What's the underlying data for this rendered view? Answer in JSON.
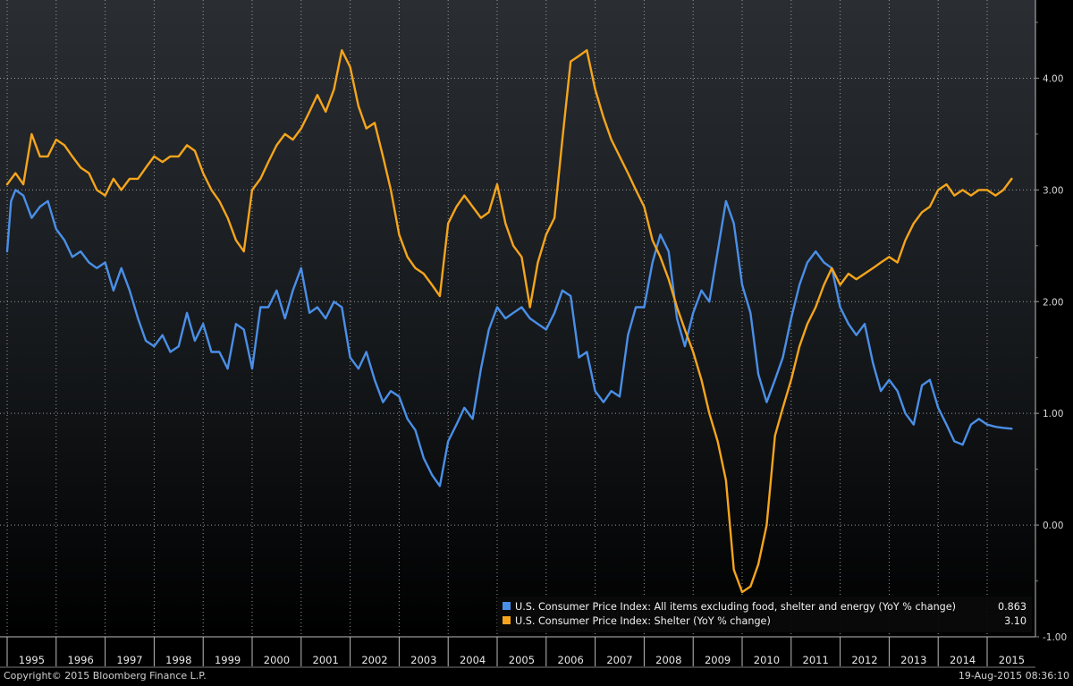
{
  "chart_data": {
    "type": "line",
    "title": "",
    "xlabel": "",
    "ylabel": "",
    "ylim": [
      -1.0,
      4.7
    ],
    "xlim": [
      1995.0,
      2015.62
    ],
    "y_ticks": [
      "-1.00",
      "0.00",
      "1.00",
      "2.00",
      "3.00",
      "4.00"
    ],
    "y_tick_values": [
      -1,
      0,
      1,
      2,
      3,
      4
    ],
    "year_labels": [
      "1995",
      "1996",
      "1997",
      "1998",
      "1999",
      "2000",
      "2001",
      "2002",
      "2003",
      "2004",
      "2005",
      "2006",
      "2007",
      "2008",
      "2009",
      "2010",
      "2011",
      "2012",
      "2013",
      "2014",
      "2015"
    ],
    "grid": true,
    "legend_position": "bottom-right",
    "series": [
      {
        "name": "U.S. Consumer Price Index: All items excluding food, shelter and energy (YoY % change)",
        "last_value": "0.863",
        "color": "#4a8fe7",
        "points": [
          [
            1995.0,
            2.45
          ],
          [
            1995.08,
            2.9
          ],
          [
            1995.17,
            3.0
          ],
          [
            1995.33,
            2.95
          ],
          [
            1995.5,
            2.75
          ],
          [
            1995.67,
            2.85
          ],
          [
            1995.83,
            2.9
          ],
          [
            1996.0,
            2.65
          ],
          [
            1996.17,
            2.55
          ],
          [
            1996.33,
            2.4
          ],
          [
            1996.5,
            2.45
          ],
          [
            1996.67,
            2.35
          ],
          [
            1996.83,
            2.3
          ],
          [
            1997.0,
            2.35
          ],
          [
            1997.17,
            2.1
          ],
          [
            1997.33,
            2.3
          ],
          [
            1997.5,
            2.1
          ],
          [
            1997.67,
            1.85
          ],
          [
            1997.83,
            1.65
          ],
          [
            1998.0,
            1.6
          ],
          [
            1998.17,
            1.7
          ],
          [
            1998.33,
            1.55
          ],
          [
            1998.5,
            1.6
          ],
          [
            1998.67,
            1.9
          ],
          [
            1998.83,
            1.65
          ],
          [
            1999.0,
            1.8
          ],
          [
            1999.17,
            1.55
          ],
          [
            1999.33,
            1.55
          ],
          [
            1999.5,
            1.4
          ],
          [
            1999.67,
            1.8
          ],
          [
            1999.83,
            1.75
          ],
          [
            2000.0,
            1.4
          ],
          [
            2000.17,
            1.95
          ],
          [
            2000.33,
            1.95
          ],
          [
            2000.5,
            2.1
          ],
          [
            2000.67,
            1.85
          ],
          [
            2000.83,
            2.1
          ],
          [
            2001.0,
            2.3
          ],
          [
            2001.17,
            1.9
          ],
          [
            2001.33,
            1.95
          ],
          [
            2001.5,
            1.85
          ],
          [
            2001.67,
            2.0
          ],
          [
            2001.83,
            1.95
          ],
          [
            2002.0,
            1.5
          ],
          [
            2002.17,
            1.4
          ],
          [
            2002.33,
            1.55
          ],
          [
            2002.5,
            1.3
          ],
          [
            2002.67,
            1.1
          ],
          [
            2002.83,
            1.2
          ],
          [
            2003.0,
            1.15
          ],
          [
            2003.17,
            0.95
          ],
          [
            2003.33,
            0.85
          ],
          [
            2003.5,
            0.6
          ],
          [
            2003.67,
            0.45
          ],
          [
            2003.83,
            0.35
          ],
          [
            2004.0,
            0.75
          ],
          [
            2004.17,
            0.9
          ],
          [
            2004.33,
            1.05
          ],
          [
            2004.5,
            0.95
          ],
          [
            2004.67,
            1.4
          ],
          [
            2004.83,
            1.75
          ],
          [
            2005.0,
            1.95
          ],
          [
            2005.17,
            1.85
          ],
          [
            2005.33,
            1.9
          ],
          [
            2005.5,
            1.95
          ],
          [
            2005.67,
            1.85
          ],
          [
            2005.83,
            1.8
          ],
          [
            2006.0,
            1.75
          ],
          [
            2006.17,
            1.9
          ],
          [
            2006.33,
            2.1
          ],
          [
            2006.5,
            2.05
          ],
          [
            2006.67,
            1.5
          ],
          [
            2006.83,
            1.55
          ],
          [
            2007.0,
            1.2
          ],
          [
            2007.17,
            1.1
          ],
          [
            2007.33,
            1.2
          ],
          [
            2007.5,
            1.15
          ],
          [
            2007.67,
            1.7
          ],
          [
            2007.83,
            1.95
          ],
          [
            2008.0,
            1.95
          ],
          [
            2008.17,
            2.35
          ],
          [
            2008.33,
            2.6
          ],
          [
            2008.5,
            2.45
          ],
          [
            2008.67,
            1.85
          ],
          [
            2008.83,
            1.6
          ],
          [
            2009.0,
            1.9
          ],
          [
            2009.17,
            2.1
          ],
          [
            2009.33,
            2.0
          ],
          [
            2009.5,
            2.45
          ],
          [
            2009.67,
            2.9
          ],
          [
            2009.83,
            2.7
          ],
          [
            2010.0,
            2.15
          ],
          [
            2010.17,
            1.9
          ],
          [
            2010.33,
            1.35
          ],
          [
            2010.5,
            1.1
          ],
          [
            2010.67,
            1.3
          ],
          [
            2010.83,
            1.5
          ],
          [
            2011.0,
            1.85
          ],
          [
            2011.17,
            2.15
          ],
          [
            2011.33,
            2.35
          ],
          [
            2011.5,
            2.45
          ],
          [
            2011.67,
            2.35
          ],
          [
            2011.83,
            2.3
          ],
          [
            2012.0,
            1.95
          ],
          [
            2012.17,
            1.8
          ],
          [
            2012.33,
            1.7
          ],
          [
            2012.5,
            1.8
          ],
          [
            2012.67,
            1.45
          ],
          [
            2012.83,
            1.2
          ],
          [
            2013.0,
            1.3
          ],
          [
            2013.17,
            1.2
          ],
          [
            2013.33,
            1.0
          ],
          [
            2013.5,
            0.9
          ],
          [
            2013.67,
            1.25
          ],
          [
            2013.83,
            1.3
          ],
          [
            2014.0,
            1.05
          ],
          [
            2014.17,
            0.9
          ],
          [
            2014.33,
            0.75
          ],
          [
            2014.5,
            0.72
          ],
          [
            2014.67,
            0.9
          ],
          [
            2014.83,
            0.95
          ],
          [
            2015.0,
            0.9
          ],
          [
            2015.17,
            0.88
          ],
          [
            2015.33,
            0.87
          ],
          [
            2015.5,
            0.863
          ]
        ]
      },
      {
        "name": "U.S. Consumer Price Index: Shelter (YoY % change)",
        "last_value": "3.10",
        "color": "#f5a51c",
        "points": [
          [
            1995.0,
            3.05
          ],
          [
            1995.17,
            3.15
          ],
          [
            1995.33,
            3.05
          ],
          [
            1995.5,
            3.5
          ],
          [
            1995.67,
            3.3
          ],
          [
            1995.83,
            3.3
          ],
          [
            1996.0,
            3.45
          ],
          [
            1996.17,
            3.4
          ],
          [
            1996.33,
            3.3
          ],
          [
            1996.5,
            3.2
          ],
          [
            1996.67,
            3.15
          ],
          [
            1996.83,
            3.0
          ],
          [
            1997.0,
            2.95
          ],
          [
            1997.17,
            3.1
          ],
          [
            1997.33,
            3.0
          ],
          [
            1997.5,
            3.1
          ],
          [
            1997.67,
            3.1
          ],
          [
            1997.83,
            3.2
          ],
          [
            1998.0,
            3.3
          ],
          [
            1998.17,
            3.25
          ],
          [
            1998.33,
            3.3
          ],
          [
            1998.5,
            3.3
          ],
          [
            1998.67,
            3.4
          ],
          [
            1998.83,
            3.35
          ],
          [
            1999.0,
            3.15
          ],
          [
            1999.17,
            3.0
          ],
          [
            1999.33,
            2.9
          ],
          [
            1999.5,
            2.75
          ],
          [
            1999.67,
            2.55
          ],
          [
            1999.83,
            2.45
          ],
          [
            2000.0,
            3.0
          ],
          [
            2000.17,
            3.1
          ],
          [
            2000.33,
            3.25
          ],
          [
            2000.5,
            3.4
          ],
          [
            2000.67,
            3.5
          ],
          [
            2000.83,
            3.45
          ],
          [
            2001.0,
            3.55
          ],
          [
            2001.17,
            3.7
          ],
          [
            2001.33,
            3.85
          ],
          [
            2001.5,
            3.7
          ],
          [
            2001.67,
            3.9
          ],
          [
            2001.83,
            4.25
          ],
          [
            2002.0,
            4.1
          ],
          [
            2002.17,
            3.75
          ],
          [
            2002.33,
            3.55
          ],
          [
            2002.5,
            3.6
          ],
          [
            2002.67,
            3.3
          ],
          [
            2002.83,
            3.0
          ],
          [
            2003.0,
            2.6
          ],
          [
            2003.17,
            2.4
          ],
          [
            2003.33,
            2.3
          ],
          [
            2003.5,
            2.25
          ],
          [
            2003.67,
            2.15
          ],
          [
            2003.83,
            2.05
          ],
          [
            2004.0,
            2.7
          ],
          [
            2004.17,
            2.85
          ],
          [
            2004.33,
            2.95
          ],
          [
            2004.5,
            2.85
          ],
          [
            2004.67,
            2.75
          ],
          [
            2004.83,
            2.8
          ],
          [
            2005.0,
            3.05
          ],
          [
            2005.17,
            2.7
          ],
          [
            2005.33,
            2.5
          ],
          [
            2005.5,
            2.4
          ],
          [
            2005.67,
            1.95
          ],
          [
            2005.83,
            2.35
          ],
          [
            2006.0,
            2.6
          ],
          [
            2006.17,
            2.75
          ],
          [
            2006.33,
            3.45
          ],
          [
            2006.5,
            4.15
          ],
          [
            2006.67,
            4.2
          ],
          [
            2006.83,
            4.25
          ],
          [
            2007.0,
            3.9
          ],
          [
            2007.17,
            3.65
          ],
          [
            2007.33,
            3.45
          ],
          [
            2007.5,
            3.3
          ],
          [
            2007.67,
            3.15
          ],
          [
            2007.83,
            3.0
          ],
          [
            2008.0,
            2.85
          ],
          [
            2008.17,
            2.55
          ],
          [
            2008.33,
            2.4
          ],
          [
            2008.5,
            2.2
          ],
          [
            2008.67,
            1.95
          ],
          [
            2008.83,
            1.75
          ],
          [
            2009.0,
            1.55
          ],
          [
            2009.17,
            1.3
          ],
          [
            2009.33,
            1.0
          ],
          [
            2009.5,
            0.75
          ],
          [
            2009.67,
            0.4
          ],
          [
            2009.83,
            -0.4
          ],
          [
            2010.0,
            -0.6
          ],
          [
            2010.17,
            -0.55
          ],
          [
            2010.33,
            -0.35
          ],
          [
            2010.5,
            0.0
          ],
          [
            2010.67,
            0.8
          ],
          [
            2010.83,
            1.05
          ],
          [
            2011.0,
            1.3
          ],
          [
            2011.17,
            1.6
          ],
          [
            2011.33,
            1.8
          ],
          [
            2011.5,
            1.95
          ],
          [
            2011.67,
            2.15
          ],
          [
            2011.83,
            2.3
          ],
          [
            2012.0,
            2.15
          ],
          [
            2012.17,
            2.25
          ],
          [
            2012.33,
            2.2
          ],
          [
            2012.5,
            2.25
          ],
          [
            2012.67,
            2.3
          ],
          [
            2012.83,
            2.35
          ],
          [
            2013.0,
            2.4
          ],
          [
            2013.17,
            2.35
          ],
          [
            2013.33,
            2.55
          ],
          [
            2013.5,
            2.7
          ],
          [
            2013.67,
            2.8
          ],
          [
            2013.83,
            2.85
          ],
          [
            2014.0,
            3.0
          ],
          [
            2014.17,
            3.05
          ],
          [
            2014.33,
            2.95
          ],
          [
            2014.5,
            3.0
          ],
          [
            2014.67,
            2.95
          ],
          [
            2014.83,
            3.0
          ],
          [
            2015.0,
            3.0
          ],
          [
            2015.17,
            2.95
          ],
          [
            2015.33,
            3.0
          ],
          [
            2015.5,
            3.1
          ]
        ]
      }
    ]
  },
  "footer": {
    "copyright": "Copyright© 2015 Bloomberg Finance L.P.",
    "timestamp": "19-Aug-2015 08:36:10"
  }
}
